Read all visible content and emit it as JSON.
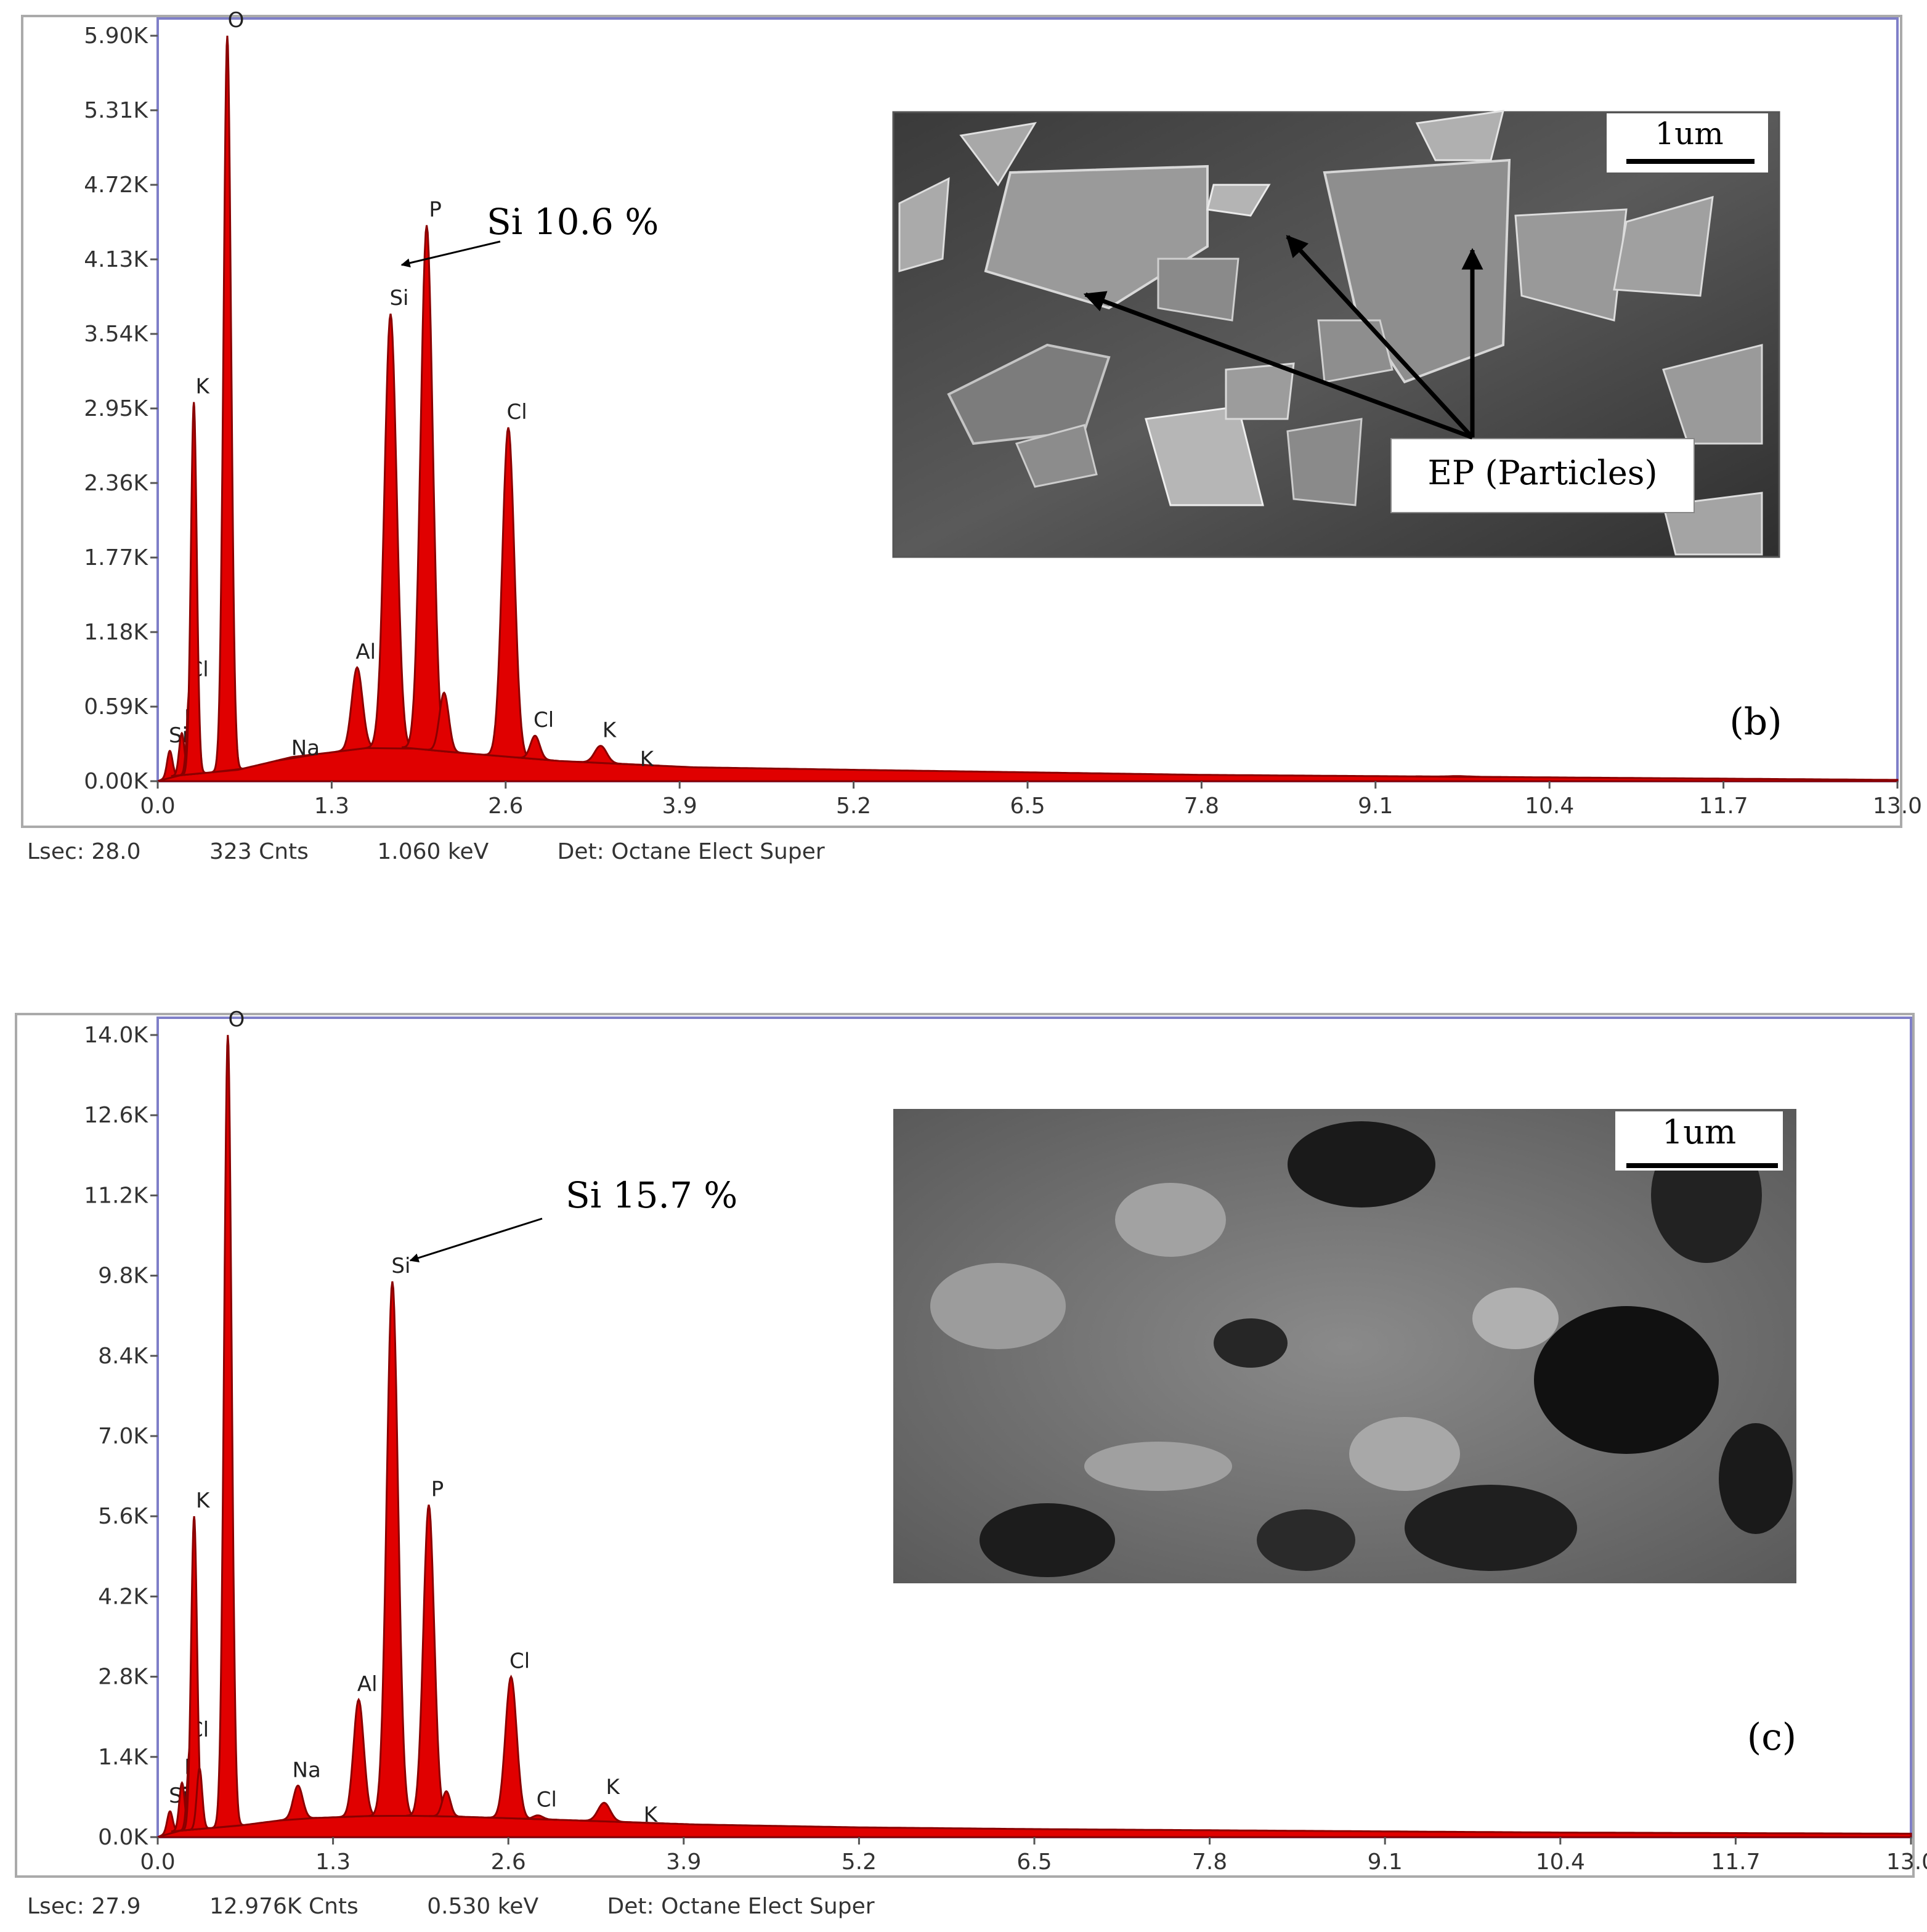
{
  "chart_data": [
    {
      "type": "area",
      "panel_label": "(b)",
      "xlim": [
        0.0,
        13.0
      ],
      "ylim": [
        0,
        5900
      ],
      "x_ticks": [
        "0.0",
        "1.3",
        "2.6",
        "3.9",
        "5.2",
        "6.5",
        "7.8",
        "9.1",
        "10.4",
        "11.7",
        "13.0"
      ],
      "y_ticks": [
        "0.00K",
        "0.59K",
        "1.18K",
        "1.77K",
        "2.36K",
        "2.95K",
        "3.54K",
        "4.13K",
        "4.72K",
        "5.31K",
        "5.90K"
      ],
      "peaks": [
        {
          "x": 0.09,
          "y": 240,
          "w": 0.02,
          "label": "Si"
        },
        {
          "x": 0.18,
          "y": 380,
          "w": 0.02,
          "label": "P"
        },
        {
          "x": 0.24,
          "y": 760,
          "w": 0.02,
          "label": "Cl"
        },
        {
          "x": 0.27,
          "y": 3000,
          "w": 0.022,
          "label": "K"
        },
        {
          "x": 0.52,
          "y": 5900,
          "w": 0.028,
          "label": "O"
        },
        {
          "x": 1.04,
          "y": 140,
          "w": 0.04,
          "label": "Na"
        },
        {
          "x": 1.49,
          "y": 900,
          "w": 0.04,
          "label": "Al"
        },
        {
          "x": 1.74,
          "y": 3700,
          "w": 0.045,
          "label": "Si"
        },
        {
          "x": 2.01,
          "y": 4400,
          "w": 0.045,
          "label": "P"
        },
        {
          "x": 2.14,
          "y": 700,
          "w": 0.035,
          "label": ""
        },
        {
          "x": 2.62,
          "y": 2800,
          "w": 0.045,
          "label": "Cl"
        },
        {
          "x": 2.82,
          "y": 360,
          "w": 0.035,
          "label": "Cl"
        },
        {
          "x": 3.31,
          "y": 280,
          "w": 0.045,
          "label": "K"
        },
        {
          "x": 3.59,
          "y": 50,
          "w": 0.04,
          "label": "K"
        },
        {
          "x": 9.72,
          "y": 40,
          "w": 0.08,
          "label": ""
        }
      ],
      "background": [
        [
          0.0,
          0
        ],
        [
          0.1,
          40
        ],
        [
          0.6,
          90
        ],
        [
          1.0,
          190
        ],
        [
          1.7,
          280
        ],
        [
          2.2,
          230
        ],
        [
          3.0,
          160
        ],
        [
          4.0,
          110
        ],
        [
          5.2,
          90
        ],
        [
          6.5,
          70
        ],
        [
          7.8,
          50
        ],
        [
          9.1,
          40
        ],
        [
          10.4,
          30
        ],
        [
          11.7,
          20
        ],
        [
          13.0,
          10
        ]
      ],
      "annotation": "Si 10.6 %",
      "status": {
        "lsec": "Lsec: 28.0",
        "counts": "323 Cnts",
        "energy": "1.060 keV",
        "detector": "Det: Octane Elect Super"
      },
      "inset": {
        "scale_bar": "1um",
        "callout": "EP (Particles)"
      }
    },
    {
      "type": "area",
      "panel_label": "(c)",
      "xlim": [
        0.0,
        13.0
      ],
      "ylim": [
        0,
        14000
      ],
      "x_ticks": [
        "0.0",
        "1.3",
        "2.6",
        "3.9",
        "5.2",
        "6.5",
        "7.8",
        "9.1",
        "10.4",
        "11.7",
        "13.0"
      ],
      "y_ticks": [
        "0.0K",
        "1.4K",
        "2.8K",
        "4.2K",
        "5.6K",
        "7.0K",
        "8.4K",
        "9.8K",
        "11.2K",
        "12.6K",
        "14.0K"
      ],
      "peaks": [
        {
          "x": 0.09,
          "y": 450,
          "w": 0.02,
          "label": "Si"
        },
        {
          "x": 0.18,
          "y": 950,
          "w": 0.02,
          "label": "P"
        },
        {
          "x": 0.24,
          "y": 1600,
          "w": 0.02,
          "label": "Cl"
        },
        {
          "x": 0.27,
          "y": 5600,
          "w": 0.022,
          "label": "K"
        },
        {
          "x": 0.31,
          "y": 1200,
          "w": 0.02,
          "label": ""
        },
        {
          "x": 0.52,
          "y": 14000,
          "w": 0.028,
          "label": "O"
        },
        {
          "x": 1.04,
          "y": 900,
          "w": 0.035,
          "label": "Na"
        },
        {
          "x": 1.49,
          "y": 2400,
          "w": 0.038,
          "label": "Al"
        },
        {
          "x": 1.74,
          "y": 9700,
          "w": 0.042,
          "label": "Si"
        },
        {
          "x": 2.01,
          "y": 5800,
          "w": 0.04,
          "label": "P"
        },
        {
          "x": 2.14,
          "y": 800,
          "w": 0.03,
          "label": ""
        },
        {
          "x": 2.62,
          "y": 2800,
          "w": 0.042,
          "label": "Cl"
        },
        {
          "x": 2.82,
          "y": 380,
          "w": 0.035,
          "label": "Cl"
        },
        {
          "x": 3.31,
          "y": 600,
          "w": 0.045,
          "label": "K"
        },
        {
          "x": 3.59,
          "y": 120,
          "w": 0.04,
          "label": "K"
        }
      ],
      "background": [
        [
          0.0,
          0
        ],
        [
          0.1,
          100
        ],
        [
          0.6,
          200
        ],
        [
          1.0,
          320
        ],
        [
          1.7,
          380
        ],
        [
          2.2,
          360
        ],
        [
          3.0,
          300
        ],
        [
          4.0,
          220
        ],
        [
          5.2,
          170
        ],
        [
          6.5,
          140
        ],
        [
          7.8,
          120
        ],
        [
          9.1,
          100
        ],
        [
          10.4,
          80
        ],
        [
          11.7,
          70
        ],
        [
          13.0,
          60
        ]
      ],
      "annotation": "Si 15.7 %",
      "status": {
        "lsec": "Lsec: 27.9",
        "counts": "12.976K Cnts",
        "energy": "0.530 keV",
        "detector": "Det: Octane Elect Super"
      },
      "inset": {
        "scale_bar": "1um"
      }
    }
  ],
  "colors": {
    "spectrum_fill": "#e00000",
    "spectrum_edge": "#8a0000",
    "frame": "#7f7fc8",
    "outer_frame": "#aaaaaa"
  }
}
